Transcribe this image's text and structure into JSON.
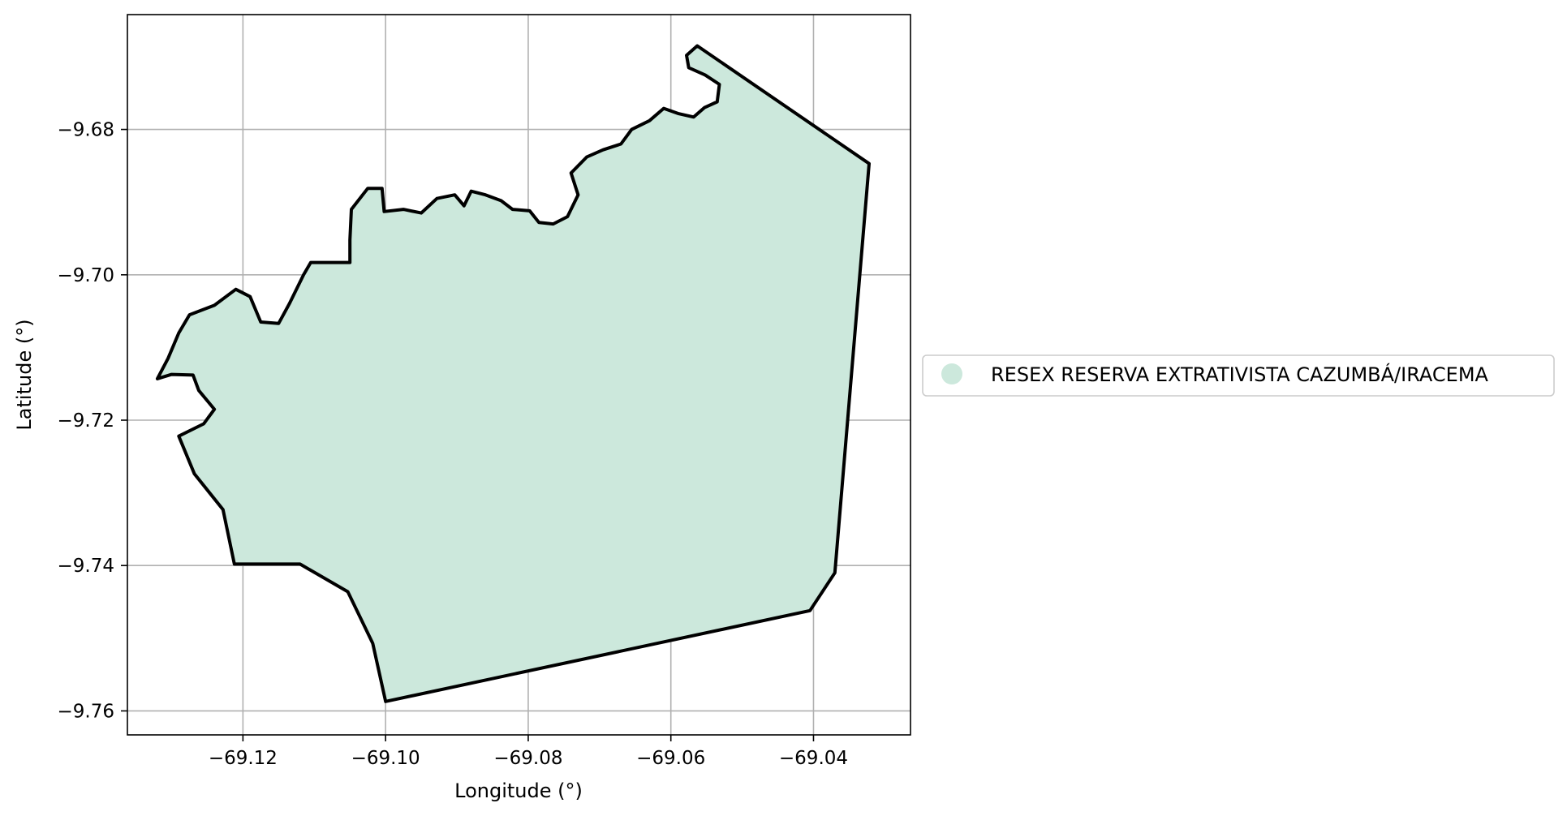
{
  "chart_data": {
    "type": "map",
    "xlabel": "Longitude (°)",
    "ylabel": "Latitude (°)",
    "xlim": [
      -69.1362,
      -69.0264
    ],
    "ylim": [
      -9.7633,
      -9.6642
    ],
    "xticks": [
      -69.12,
      -69.1,
      -69.08,
      -69.06,
      -69.04
    ],
    "yticks": [
      -9.68,
      -9.7,
      -9.72,
      -9.74,
      -9.76
    ],
    "xtick_labels": [
      "−69.12",
      "−69.10",
      "−69.08",
      "−69.06",
      "−69.04"
    ],
    "ytick_labels": [
      "−9.68",
      "−9.70",
      "−9.72",
      "−9.74",
      "−9.76"
    ],
    "grid": true,
    "legend_position": "center-left outside",
    "legend": [
      {
        "label": "RESEX RESERVA EXTRATIVISTA CAZUMBÁ/IRACEMA",
        "color": "#cce8dc",
        "marker": "circle"
      }
    ],
    "boundary_color": "#000000",
    "boundary": [
      [
        -69.0563,
        -9.6685
      ],
      [
        -69.0322,
        -9.6847
      ],
      [
        -69.037,
        -9.741
      ],
      [
        -69.0405,
        -9.7462
      ],
      [
        -69.1,
        -9.7587
      ],
      [
        -69.1018,
        -9.7507
      ],
      [
        -69.1053,
        -9.7436
      ],
      [
        -69.112,
        -9.7398
      ],
      [
        -69.1212,
        -9.7398
      ],
      [
        -69.1228,
        -9.7323
      ],
      [
        -69.1268,
        -9.7274
      ],
      [
        -69.129,
        -9.7222
      ],
      [
        -69.1255,
        -9.7205
      ],
      [
        -69.124,
        -9.7185
      ],
      [
        -69.1262,
        -9.7159
      ],
      [
        -69.127,
        -9.7138
      ],
      [
        -69.13,
        -9.7137
      ],
      [
        -69.132,
        -9.7143
      ],
      [
        -69.1305,
        -9.7115
      ],
      [
        -69.129,
        -9.708
      ],
      [
        -69.1275,
        -9.7055
      ],
      [
        -69.124,
        -9.7042
      ],
      [
        -69.121,
        -9.702
      ],
      [
        -69.119,
        -9.703
      ],
      [
        -69.1175,
        -9.7065
      ],
      [
        -69.115,
        -9.7067
      ],
      [
        -69.1135,
        -9.704
      ],
      [
        -69.1115,
        -9.7
      ],
      [
        -69.1105,
        -9.6983
      ],
      [
        -69.105,
        -9.6983
      ],
      [
        -69.105,
        -9.6952
      ],
      [
        -69.1048,
        -9.691
      ],
      [
        -69.1025,
        -9.6881
      ],
      [
        -69.1005,
        -9.6881
      ],
      [
        -69.1002,
        -9.6913
      ],
      [
        -69.0975,
        -9.691
      ],
      [
        -69.095,
        -9.6915
      ],
      [
        -69.0928,
        -9.6895
      ],
      [
        -69.0903,
        -9.689
      ],
      [
        -69.089,
        -9.6905
      ],
      [
        -69.088,
        -9.6885
      ],
      [
        -69.086,
        -9.689
      ],
      [
        -69.0838,
        -9.6898
      ],
      [
        -69.0822,
        -9.691
      ],
      [
        -69.0798,
        -9.6912
      ],
      [
        -69.0785,
        -9.6928
      ],
      [
        -69.0765,
        -9.693
      ],
      [
        -69.0745,
        -9.692
      ],
      [
        -69.073,
        -9.689
      ],
      [
        -69.074,
        -9.686
      ],
      [
        -69.0718,
        -9.6838
      ],
      [
        -69.0695,
        -9.6828
      ],
      [
        -69.067,
        -9.682
      ],
      [
        -69.0655,
        -9.68
      ],
      [
        -69.063,
        -9.6788
      ],
      [
        -69.061,
        -9.6771
      ],
      [
        -69.059,
        -9.6778
      ],
      [
        -69.0568,
        -9.6783
      ],
      [
        -69.0553,
        -9.677
      ],
      [
        -69.0535,
        -9.6762
      ],
      [
        -69.0532,
        -9.6738
      ],
      [
        -69.0552,
        -9.6725
      ],
      [
        -69.0575,
        -9.6715
      ],
      [
        -69.0578,
        -9.6698
      ],
      [
        -69.0563,
        -9.6685
      ]
    ]
  }
}
